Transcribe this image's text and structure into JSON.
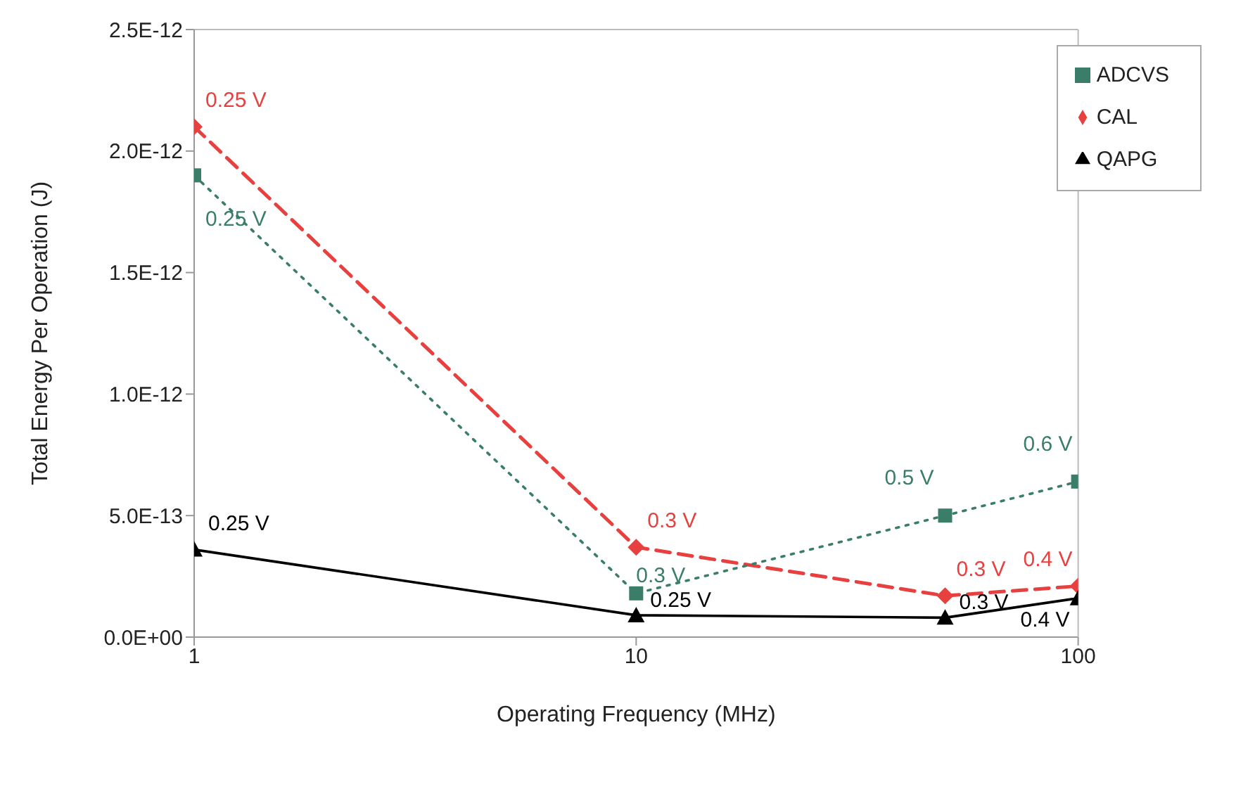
{
  "chart_data": {
    "type": "line",
    "xlabel": "Operating Frequency (MHz)",
    "ylabel": "Total Energy Per Operation (J)",
    "x": [
      1,
      10,
      50,
      100
    ],
    "log": "x",
    "xlim": [
      1,
      100
    ],
    "xticks": [
      1,
      10,
      100
    ],
    "ylim": [
      0,
      2.5e-12
    ],
    "yticks": [
      {
        "value": 0,
        "label": "0.0E+00"
      },
      {
        "value": 5e-13,
        "label": "5.0E-13"
      },
      {
        "value": 1e-12,
        "label": "1.0E-12"
      },
      {
        "value": 1.5e-12,
        "label": "1.5E-12"
      },
      {
        "value": 2e-12,
        "label": "2.0E-12"
      },
      {
        "value": 2.5e-12,
        "label": "2.5E-12"
      }
    ],
    "legend": "top right",
    "series": [
      {
        "name": "CAL",
        "color": "#e8403f",
        "marker": "diamond",
        "line_style": "dashed",
        "values": [
          2.1e-12,
          3.7e-13,
          1.7e-13,
          2.1e-13
        ]
      },
      {
        "name": "ADCVS",
        "color": "#3a7d68",
        "marker": "square",
        "line_style": "dotted",
        "values": [
          1.9e-12,
          1.8e-13,
          5e-13,
          6.4e-13
        ]
      },
      {
        "name": "QAPG",
        "color": "#000000",
        "marker": "triangle",
        "line_style": "solid",
        "values": [
          3.6e-13,
          9e-14,
          8e-14,
          1.6e-13
        ]
      }
    ],
    "annotations": [
      {
        "text": "0.25 V",
        "x": 1,
        "y": 2.1e-12
      },
      {
        "text": "0.3 V",
        "x": 10,
        "y": 3.7e-13
      },
      {
        "text": "0.3 V",
        "x": 50,
        "y": 1.7e-13
      },
      {
        "text": "0.4 V",
        "x": 100,
        "y": 2.1e-13
      },
      {
        "text": "0.25 V",
        "x": 1,
        "y": 1.9e-12
      },
      {
        "text": "0.3 V",
        "x": 10,
        "y": 1.8e-13
      },
      {
        "text": "0.5 V",
        "x": 50,
        "y": 5e-13
      },
      {
        "text": "0.6 V",
        "x": 100,
        "y": 6.4e-13
      },
      {
        "text": "0.25 V",
        "x": 1,
        "y": 3.6e-13
      },
      {
        "text": "0.25 V",
        "x": 10,
        "y": 9e-14
      },
      {
        "text": "0.3 V",
        "x": 50,
        "y": 8e-14
      },
      {
        "text": "0.4 V",
        "x": 100,
        "y": 1.6e-13
      }
    ]
  }
}
